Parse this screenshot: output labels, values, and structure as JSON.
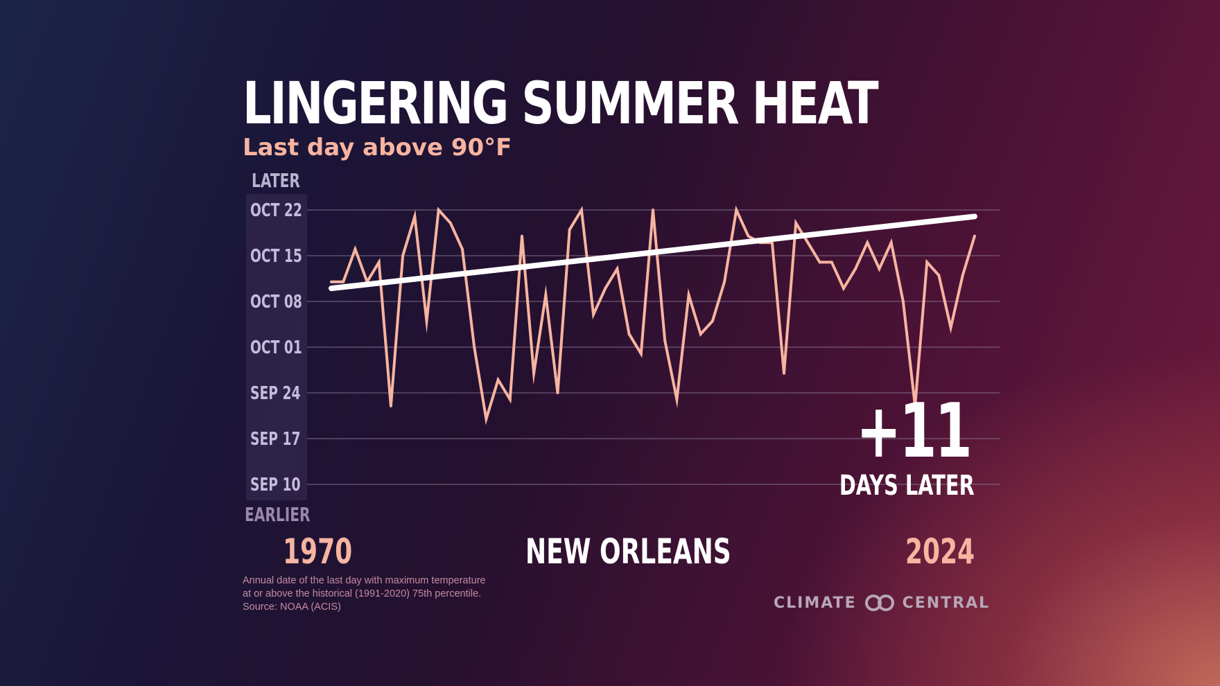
{
  "header": {
    "title": "LINGERING SUMMER HEAT",
    "subtitle": "Last day above 90°F"
  },
  "axis_labels": {
    "top": "LATER",
    "bottom": "EARLIER"
  },
  "footer": {
    "start_year": "1970",
    "location": "NEW ORLEANS",
    "end_year": "2024",
    "note_lines": [
      "Annual date of the last day with maximum temperature",
      "at or above the historical (1991-2020) 75th percentile.",
      "Source: NOAA (ACIS)"
    ],
    "logo_left": "CLIMATE",
    "logo_right": "CENTRAL"
  },
  "callout": {
    "value": "+11",
    "label": "DAYS LATER"
  },
  "colors": {
    "line": "#f7b4a0",
    "trend": "#ffffff",
    "grid": "#8a7a96",
    "axis_panel": "#3a2d55",
    "accent": "#f7b4a0"
  },
  "chart_data": {
    "type": "line",
    "title": "LINGERING SUMMER HEAT",
    "subtitle": "Last day above 90°F",
    "xlabel": "",
    "ylabel": "Last day above 90°F",
    "x": [
      1970,
      1971,
      1972,
      1973,
      1974,
      1975,
      1976,
      1977,
      1978,
      1979,
      1980,
      1981,
      1982,
      1983,
      1984,
      1985,
      1986,
      1987,
      1988,
      1989,
      1990,
      1991,
      1992,
      1993,
      1994,
      1995,
      1996,
      1997,
      1998,
      1999,
      2000,
      2001,
      2002,
      2003,
      2004,
      2005,
      2006,
      2007,
      2008,
      2009,
      2010,
      2011,
      2012,
      2013,
      2014,
      2015,
      2016,
      2017,
      2018,
      2019,
      2020,
      2021,
      2022,
      2023,
      2024
    ],
    "y_unit": "day offset from Sep 10 (0 = Sep 10, 42 = Oct 22)",
    "values": [
      31,
      31,
      36,
      31,
      34,
      12,
      35,
      41,
      25,
      42,
      40,
      36,
      21,
      10,
      16,
      13,
      38,
      17,
      29,
      14,
      39,
      42,
      26,
      30,
      33,
      23,
      20,
      42,
      22,
      13,
      29,
      23,
      25,
      31,
      42,
      38,
      37,
      37,
      17,
      40,
      37,
      34,
      34,
      30,
      33,
      37,
      33,
      37,
      28,
      12,
      34,
      32,
      24,
      32,
      38
    ],
    "trend": {
      "start": 30,
      "end": 41
    },
    "y_ticks": [
      {
        "value": 0,
        "label": "SEP 10"
      },
      {
        "value": 7,
        "label": "SEP 17"
      },
      {
        "value": 14,
        "label": "SEP 24"
      },
      {
        "value": 21,
        "label": "OCT 01"
      },
      {
        "value": 28,
        "label": "OCT 08"
      },
      {
        "value": 35,
        "label": "OCT 15"
      },
      {
        "value": 42,
        "label": "OCT 22"
      }
    ],
    "ylim": [
      0,
      42
    ],
    "xlim": [
      1970,
      2024
    ],
    "grid": true,
    "legend": "none",
    "annotation": "+11 DAYS LATER"
  }
}
